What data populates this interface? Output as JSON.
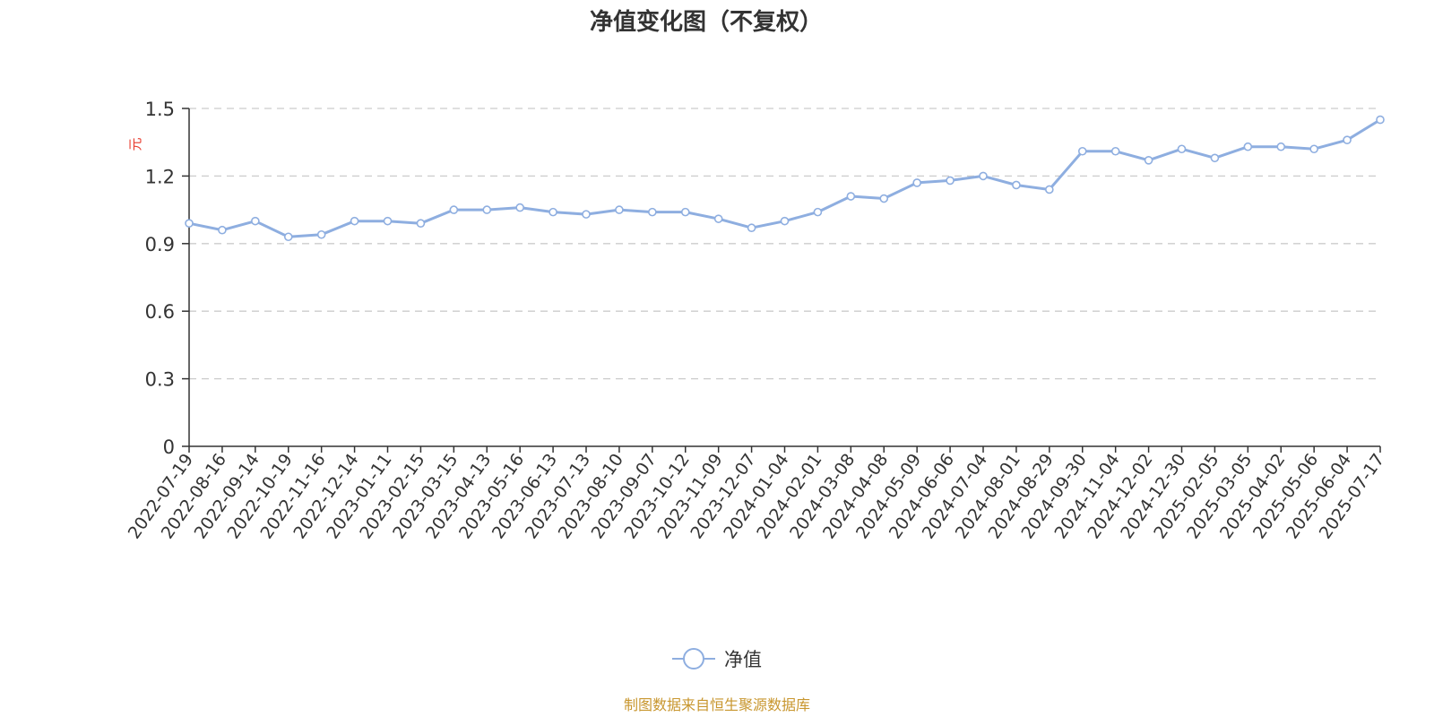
{
  "colors": {
    "line": "#8eaee0",
    "grid": "#cccccc",
    "axis": "#333333",
    "text": "#333333",
    "unit": "#e8382b",
    "source": "#c8962e"
  },
  "chart_data": {
    "type": "line",
    "title": "净值变化图（不复权）",
    "ylabel": "元",
    "ylim": [
      0,
      1.5
    ],
    "yticks": [
      "0",
      "0.3",
      "0.6",
      "0.9",
      "1.2",
      "1.5"
    ],
    "grid": true,
    "legend_position": "bottom-center",
    "x": [
      "2022-07-19",
      "2022-08-16",
      "2022-09-14",
      "2022-10-19",
      "2022-11-16",
      "2022-12-14",
      "2023-01-11",
      "2023-02-15",
      "2023-03-15",
      "2023-04-13",
      "2023-05-16",
      "2023-06-13",
      "2023-07-13",
      "2023-08-10",
      "2023-09-07",
      "2023-10-12",
      "2023-11-09",
      "2023-12-07",
      "2024-01-04",
      "2024-02-01",
      "2024-03-08",
      "2024-04-08",
      "2024-05-09",
      "2024-06-06",
      "2024-07-04",
      "2024-08-01",
      "2024-08-29",
      "2024-09-30",
      "2024-11-04",
      "2024-12-02",
      "2024-12-30",
      "2025-02-05",
      "2025-03-05",
      "2025-04-02",
      "2025-05-06",
      "2025-06-04",
      "2025-07-17"
    ],
    "series": [
      {
        "name": "净值",
        "values": [
          0.99,
          0.96,
          1.0,
          0.93,
          0.94,
          1.0,
          1.0,
          0.99,
          1.05,
          1.05,
          1.06,
          1.04,
          1.03,
          1.05,
          1.04,
          1.04,
          1.01,
          0.97,
          1.0,
          1.04,
          1.11,
          1.1,
          1.17,
          1.18,
          1.2,
          1.16,
          1.14,
          1.31,
          1.31,
          1.27,
          1.32,
          1.28,
          1.33,
          1.33,
          1.32,
          1.36,
          1.45
        ]
      }
    ]
  },
  "legend": {
    "label": "净值"
  },
  "source": "制图数据来自恒生聚源数据库"
}
